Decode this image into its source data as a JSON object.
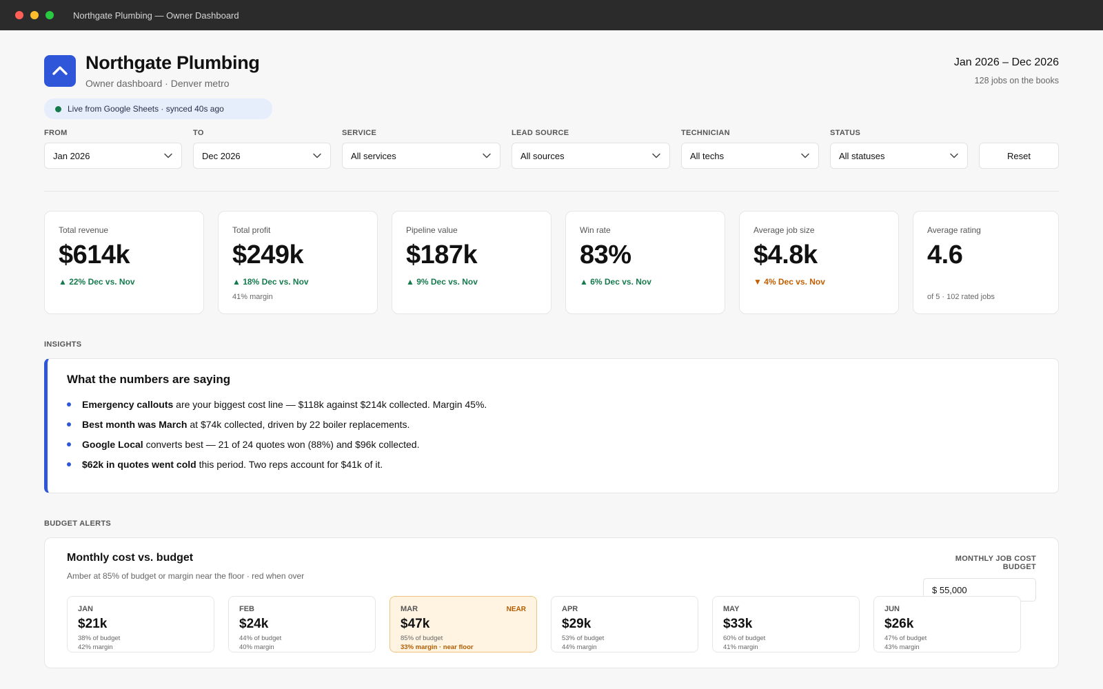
{
  "window": {
    "title": "Northgate Plumbing — Owner Dashboard"
  },
  "brand": {
    "name": "Northgate Plumbing",
    "subtitle": "Owner dashboard · Denver metro",
    "logo_icon": "chevron-up-icon",
    "accent": "#2f56d8"
  },
  "period": {
    "range": "Jan 2026 – Dec 2026",
    "jobs": "128 jobs on the books"
  },
  "live": {
    "text": "Live from Google Sheets · synced 40s ago",
    "dot_color": "#157a4c"
  },
  "filters": [
    {
      "label": "FROM",
      "value": "Jan 2026"
    },
    {
      "label": "TO",
      "value": "Dec 2026"
    },
    {
      "label": "SERVICE",
      "value": "All services"
    },
    {
      "label": "LEAD SOURCE",
      "value": "All sources"
    },
    {
      "label": "TECHNICIAN",
      "value": "All techs"
    },
    {
      "label": "STATUS",
      "value": "All statuses"
    }
  ],
  "reset_label": "Reset",
  "kpis": [
    {
      "label": "Total revenue",
      "value": "$614k",
      "delta": "▲ 22% Dec vs. Nov",
      "trend": "up",
      "note": ""
    },
    {
      "label": "Total profit",
      "value": "$249k",
      "delta": "▲ 18% Dec vs. Nov",
      "trend": "up",
      "note": "41% margin"
    },
    {
      "label": "Pipeline value",
      "value": "$187k",
      "delta": "▲ 9% Dec vs. Nov",
      "trend": "up",
      "note": ""
    },
    {
      "label": "Win rate",
      "value": "83%",
      "delta": "▲ 6% Dec vs. Nov",
      "trend": "up",
      "note": ""
    },
    {
      "label": "Average job size",
      "value": "$4.8k",
      "delta": "▼ 4% Dec vs. Nov",
      "trend": "down",
      "note": ""
    },
    {
      "label": "Average rating",
      "value": "4.6",
      "delta": "",
      "trend": "",
      "note": "of 5 · 102 rated jobs"
    }
  ],
  "insights": {
    "section_label": "INSIGHTS",
    "title": "What the numbers are saying",
    "items": [
      {
        "bold": "Emergency callouts",
        "rest": " are your biggest cost line — $118k against $214k collected. Margin 45%."
      },
      {
        "bold": "Best month was March",
        "rest": " at $74k collected, driven by 22 boiler replacements."
      },
      {
        "bold": "Google Local",
        "rest": " converts best — 21 of 24 quotes won (88%) and $96k collected."
      },
      {
        "bold": "$62k in quotes went cold",
        "rest": " this period. Two reps account for $41k of it."
      }
    ]
  },
  "budget": {
    "section_label": "BUDGET ALERTS",
    "title": "Monthly cost vs. budget",
    "subtitle": "Amber at 85% of budget or margin near the floor · red when over",
    "input_label": "MONTHLY JOB COST BUDGET",
    "input_value": "$ 55,000",
    "months": [
      {
        "name": "JAN",
        "value": "$21k",
        "budget": "38% of budget",
        "margin": "42% margin",
        "status": ""
      },
      {
        "name": "FEB",
        "value": "$24k",
        "budget": "44% of budget",
        "margin": "40% margin",
        "status": ""
      },
      {
        "name": "MAR",
        "value": "$47k",
        "budget": "85% of budget",
        "margin": "33% margin · near floor",
        "status": "NEAR"
      },
      {
        "name": "APR",
        "value": "$29k",
        "budget": "53% of budget",
        "margin": "44% margin",
        "status": ""
      },
      {
        "name": "MAY",
        "value": "$33k",
        "budget": "60% of budget",
        "margin": "41% margin",
        "status": ""
      },
      {
        "name": "JUN",
        "value": "$26k",
        "budget": "47% of budget",
        "margin": "43% margin",
        "status": ""
      }
    ]
  }
}
